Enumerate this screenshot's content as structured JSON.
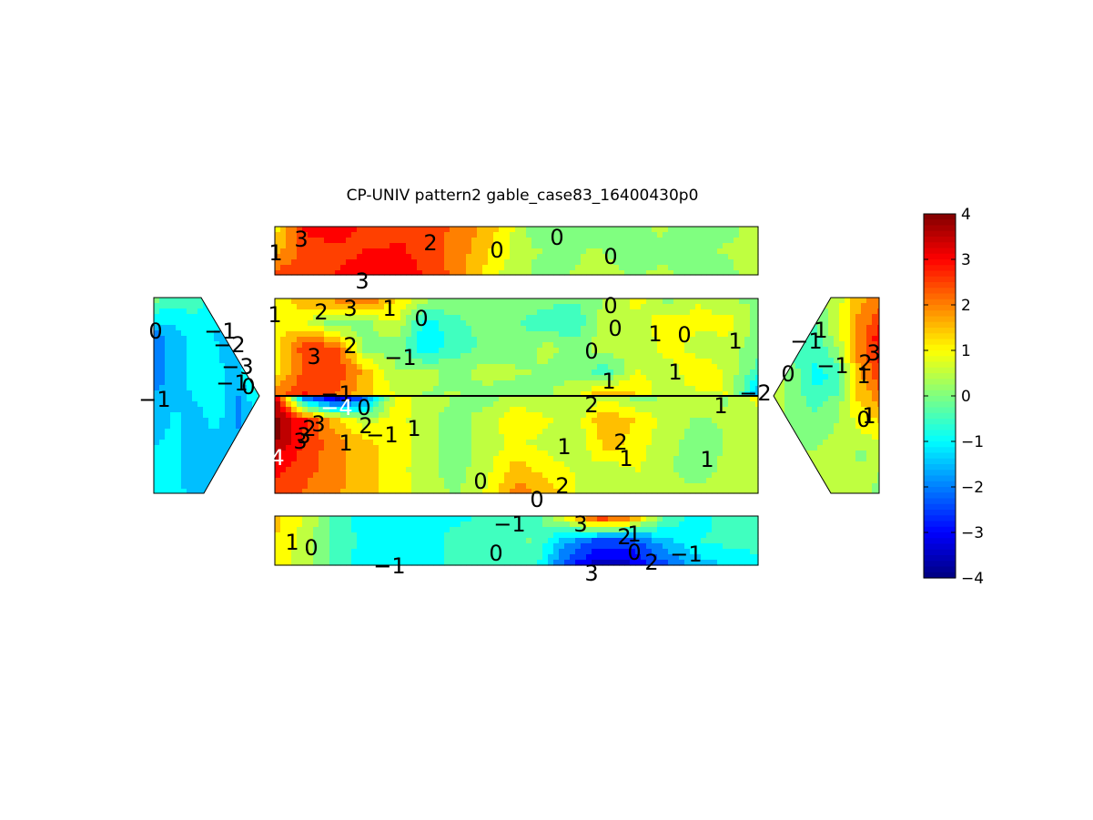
{
  "chart_data": {
    "type": "heatmap",
    "title": "CP-UNIV pattern2 gable_case83_16400430p0",
    "colormap": "jet",
    "clim": [
      -4,
      4
    ],
    "colorbar": {
      "ticks": [
        "4",
        "3",
        "2",
        "1",
        "0",
        "-1",
        "-2",
        "-3",
        "-4"
      ]
    },
    "faces": [
      {
        "name": "top-roof",
        "grid": [
          [
            1,
            3,
            3,
            2.5,
            2.6,
            2.4,
            2.0,
            1.2,
            0.0,
            0.2,
            0.1,
            0.2,
            0.3,
            0.0,
            0.1,
            0.4
          ],
          [
            1.5,
            2.5,
            2.6,
            2.8,
            2.8,
            2.4,
            1.8,
            1.0,
            0.3,
            0.1,
            0.3,
            0.0,
            0.2,
            0.1,
            0.3,
            0.3
          ],
          [
            2.5,
            2.6,
            2.8,
            3.0,
            3.0,
            2.6,
            1.6,
            0.7,
            0.2,
            0.2,
            0.5,
            0.2,
            0.3,
            0.2,
            0.1,
            0.5
          ]
        ],
        "labels": [
          "1",
          "3",
          "2",
          "0",
          "0",
          "0",
          "3"
        ]
      },
      {
        "name": "upper-wall",
        "grid": [
          [
            1,
            1.6,
            2.0,
            2.5,
            1.2,
            0.4,
            0.2,
            0.0,
            0.3,
            0.0,
            -0.2,
            0.3,
            1.0,
            0.0,
            0.7,
            0.2,
            0.2
          ],
          [
            1,
            0.8,
            -0.2,
            0.1,
            0.8,
            -1.0,
            -0.4,
            0.0,
            -0.2,
            -0.7,
            -0.6,
            0.6,
            0.5,
            1.1,
            0.9,
            1.0,
            0.0
          ],
          [
            1,
            2.6,
            2.4,
            0.0,
            0.0,
            -1.2,
            -0.5,
            -0.2,
            0.0,
            0.4,
            0.0,
            0.6,
            0.3,
            1.0,
            0.5,
            0.5,
            0.0
          ],
          [
            1,
            2.4,
            2.8,
            1.5,
            0.3,
            0.4,
            0.0,
            0.5,
            0.3,
            0.2,
            0.0,
            -0.6,
            0.8,
            0.5,
            1.2,
            0.6,
            -0.5
          ],
          [
            2.0,
            2.8,
            2.2,
            1.4,
            0.8,
            0.2,
            0.3,
            0.0,
            0.1,
            0.2,
            0.6,
            2.0,
            1.2,
            0.4,
            0.6,
            0.8,
            -1.8
          ]
        ],
        "labels": [
          "1",
          "2",
          "3",
          "1",
          "0",
          "0",
          "2",
          "-1",
          "3",
          "-1",
          "0",
          "1",
          "0",
          "1",
          "0",
          "1",
          "1",
          "2",
          "-2"
        ]
      },
      {
        "name": "lower-wall",
        "grid": [
          [
            3.5,
            -2.5,
            -4.0,
            -2.5,
            1.0,
            0.6,
            0.2,
            0.0,
            0.4,
            0.3,
            0.2,
            0.5,
            0.0,
            0.3,
            0.5,
            0.2,
            1.0
          ],
          [
            4.0,
            2.8,
            1.5,
            0.5,
            1.0,
            0.4,
            0.0,
            0.5,
            1.2,
            0.8,
            0.6,
            1.8,
            1.2,
            0.5,
            0.2,
            0.3,
            0.5
          ],
          [
            3.8,
            2.6,
            2.0,
            1.4,
            1.0,
            0.5,
            -0.2,
            0.6,
            0.8,
            0.6,
            0.3,
            1.5,
            1.0,
            0.4,
            0.0,
            0.3,
            0.6
          ],
          [
            3.0,
            2.4,
            2.0,
            1.4,
            1.0,
            0.4,
            0.0,
            0.6,
            1.5,
            1.0,
            0.7,
            0.5,
            0.8,
            0.3,
            0.0,
            0.4,
            0.5
          ],
          [
            2.5,
            2.2,
            1.8,
            1.5,
            1.0,
            0.5,
            0.2,
            0.8,
            2.0,
            1.6,
            0.7,
            0.5,
            0.6,
            0.4,
            0.4,
            0.3,
            0.4
          ]
        ],
        "labels": [
          "-4",
          "3",
          "3",
          "0",
          "2",
          "-1",
          "1",
          "4",
          "3",
          "2",
          "1",
          "1",
          "2",
          "1",
          "1",
          "0",
          "0",
          "2",
          "1"
        ]
      },
      {
        "name": "bottom-roof",
        "grid": [
          [
            1.5,
            0.6,
            -0.6,
            -1.0,
            -1.0,
            -0.8,
            -0.8,
            -0.4,
            -0.6,
            1.0,
            3.0,
            2.5,
            0.0,
            -1.0,
            -0.6,
            -0.4
          ],
          [
            1.2,
            0.5,
            -0.5,
            -1.0,
            -1.0,
            -0.8,
            -0.6,
            -0.5,
            -0.2,
            -1.5,
            -2.5,
            -2.5,
            -1.5,
            -0.8,
            -0.6,
            -0.5
          ],
          [
            1.0,
            0.4,
            -0.6,
            -1.0,
            -1.0,
            -0.8,
            -0.6,
            -0.4,
            -0.3,
            -2.5,
            -3.5,
            -3.4,
            -2.5,
            -1.6,
            -1.2,
            -1.0
          ]
        ],
        "labels": [
          "1",
          "0",
          "-1",
          "-1",
          "0",
          "3",
          "2",
          "1",
          "0",
          "-1",
          "3",
          "2"
        ]
      },
      {
        "name": "left-gable",
        "grid": [
          [
            0.0,
            -0.5,
            -0.5,
            -1.0,
            -1.0,
            -0.5
          ],
          [
            -2.0,
            -1.5,
            -1.0,
            -1.3,
            -2.0,
            -1.0
          ],
          [
            -2.0,
            -1.6,
            -1.0,
            -1.0,
            -1.5,
            -0.2
          ],
          [
            -1.4,
            -1.2,
            -1.4,
            -1.0,
            -2.0,
            -1.0
          ],
          [
            -1.2,
            -1.2,
            -1.5,
            -1.6,
            -1.2,
            -1.0
          ],
          [
            -1.0,
            -1.2,
            -1.3,
            -1.4,
            -1.2,
            -1.0
          ]
        ],
        "labels": [
          "0",
          "-1",
          "-2",
          "-3",
          "-1",
          "0",
          "-1"
        ]
      },
      {
        "name": "right-gable",
        "grid": [
          [
            0.5,
            0.3,
            0.2,
            0.5,
            1.5,
            2.0
          ],
          [
            0.2,
            -1.0,
            -0.4,
            0.5,
            2.0,
            3.0
          ],
          [
            0.5,
            0.0,
            -1.0,
            -0.6,
            1.6,
            2.6
          ],
          [
            0.6,
            0.0,
            -0.2,
            0.2,
            1.0,
            1.5
          ],
          [
            0.5,
            0.3,
            0.3,
            0.5,
            0.2,
            0.3
          ],
          [
            0.4,
            0.3,
            0.2,
            0.3,
            0.4,
            0.2
          ]
        ],
        "labels": [
          "-1",
          "1",
          "-1",
          "2",
          "3",
          "0",
          "1",
          "0",
          "1"
        ]
      }
    ]
  }
}
